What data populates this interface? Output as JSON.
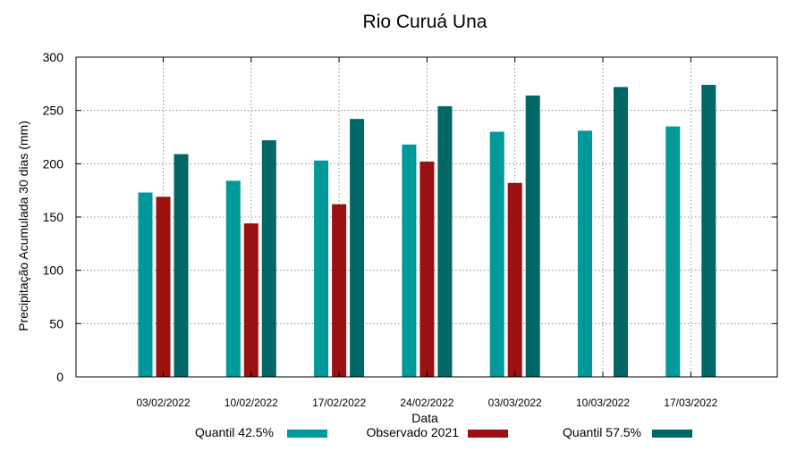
{
  "chart_data": {
    "type": "bar",
    "title": "Rio Curuá Una",
    "xlabel": "Data",
    "ylabel": "Precipitação Acumulada 30 dias (mm)",
    "ylim": [
      0,
      300
    ],
    "yticks": [
      0,
      50,
      100,
      150,
      200,
      250,
      300
    ],
    "grid": true,
    "legend_position": "bottom",
    "categories": [
      "03/02/2022",
      "10/02/2022",
      "17/02/2022",
      "24/02/2022",
      "03/03/2022",
      "10/03/2022",
      "17/03/2022"
    ],
    "series": [
      {
        "name": "Quantil 42.5%",
        "color": "#009999",
        "values": [
          173,
          184,
          203,
          218,
          230,
          231,
          235
        ]
      },
      {
        "name": "Observado 2021",
        "color": "#991111",
        "values": [
          169,
          144,
          162,
          202,
          182,
          null,
          null
        ]
      },
      {
        "name": "Quantil 57.5%",
        "color": "#006666",
        "values": [
          209,
          222,
          242,
          254,
          264,
          272,
          274
        ]
      }
    ]
  }
}
